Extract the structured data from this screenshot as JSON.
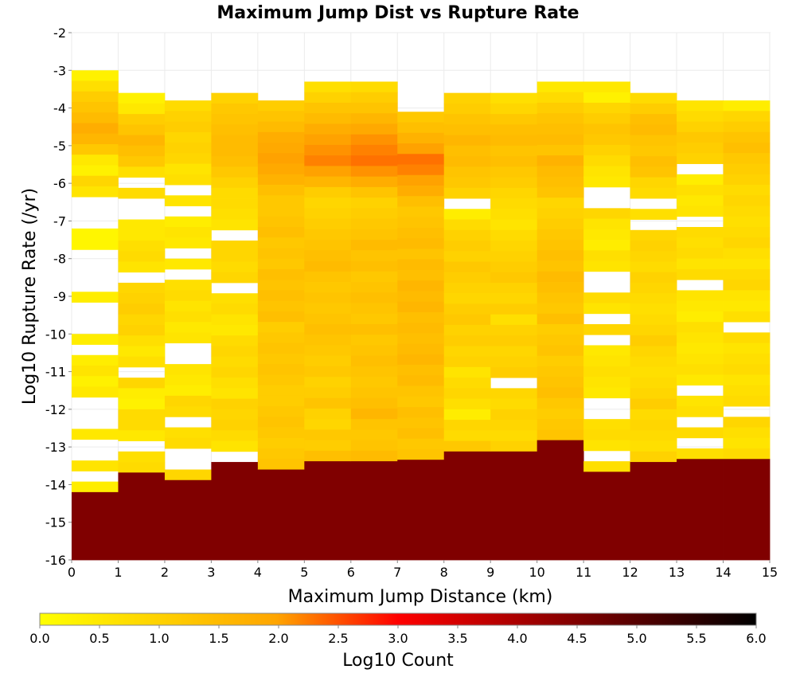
{
  "chart_data": {
    "type": "heatmap",
    "title": "Maximum Jump Dist vs Rupture Rate",
    "xlabel": "Maximum Jump Distance (km)",
    "ylabel": "Log10 Rupture Rate (/yr)",
    "xlim": [
      0,
      15
    ],
    "ylim": [
      -16,
      -2
    ],
    "x_ticks": [
      "0",
      "1",
      "2",
      "3",
      "4",
      "5",
      "6",
      "7",
      "8",
      "9",
      "10",
      "11",
      "12",
      "13",
      "14",
      "15"
    ],
    "y_ticks": [
      "-2",
      "-3",
      "-4",
      "-5",
      "-6",
      "-7",
      "-8",
      "-9",
      "-10",
      "-11",
      "-12",
      "-13",
      "-14",
      "-15",
      "-16"
    ],
    "x_bin_width": 1,
    "y_bin_height": 0.28,
    "grid": true,
    "colorbar": {
      "label": "Log10 Count",
      "min": 0,
      "max": 6,
      "ticks": [
        "0.0",
        "0.5",
        "1.0",
        "1.5",
        "2.0",
        "2.5",
        "3.0",
        "3.5",
        "4.0",
        "4.5",
        "5.0",
        "5.5",
        "6.0"
      ],
      "colors": [
        "#ffff00",
        "#ffa500",
        "#ff0000",
        "#000000"
      ]
    },
    "columns": [
      {
        "x": 0,
        "y_top": -3.0,
        "values": [
          0.3,
          0.7,
          1.1,
          1.3,
          1.5,
          1.8,
          1.6,
          1.2,
          0.5,
          0.3,
          0.9,
          0.6,
          null,
          null,
          null,
          0.2,
          0.2,
          null,
          null,
          null,
          null,
          0.4,
          null,
          null,
          null,
          0.4,
          null,
          0.4,
          0.6,
          0.3,
          0.5,
          null,
          null,
          null,
          0.5,
          null,
          null,
          0.6,
          null,
          0.4,
          4.5
        ]
      },
      {
        "x": 1,
        "y_top": -3.6,
        "values": [
          0.3,
          0.5,
          1.1,
          1.3,
          1.6,
          1.4,
          1.2,
          0.7,
          null,
          0.8,
          null,
          null,
          0.5,
          0.5,
          0.7,
          0.8,
          0.6,
          null,
          0.9,
          1.0,
          1.1,
          0.9,
          1.0,
          0.7,
          0.5,
          0.7,
          null,
          0.9,
          0.4,
          0.3,
          0.8,
          0.8,
          0.5,
          null,
          0.7,
          0.8,
          4.5
        ]
      },
      {
        "x": 2,
        "y_top": -3.8,
        "values": [
          0.8,
          1.0,
          1.1,
          0.9,
          1.0,
          0.9,
          0.6,
          0.7,
          null,
          0.6,
          null,
          0.4,
          0.6,
          0.5,
          null,
          0.5,
          null,
          0.7,
          0.8,
          0.6,
          0.7,
          0.5,
          0.6,
          null,
          null,
          0.6,
          0.5,
          0.4,
          0.9,
          0.8,
          null,
          0.7,
          0.8,
          null,
          null,
          0.9,
          4.5
        ]
      },
      {
        "x": 3,
        "y_top": -3.6,
        "values": [
          1.0,
          1.2,
          1.3,
          1.4,
          1.5,
          1.5,
          1.4,
          1.2,
          1.0,
          0.8,
          0.8,
          0.7,
          0.6,
          null,
          0.9,
          0.9,
          0.8,
          0.9,
          null,
          0.7,
          0.8,
          0.6,
          0.5,
          0.8,
          0.9,
          0.8,
          0.9,
          0.7,
          0.6,
          1.0,
          0.9,
          1.0,
          0.8,
          0.6,
          null,
          4.5
        ]
      },
      {
        "x": 4,
        "y_top": -3.8,
        "values": [
          1.1,
          1.3,
          1.5,
          1.8,
          1.9,
          2.0,
          1.9,
          1.7,
          1.4,
          1.2,
          1.2,
          1.3,
          1.4,
          1.2,
          1.3,
          1.2,
          1.4,
          1.3,
          1.4,
          1.3,
          1.4,
          1.1,
          1.2,
          1.3,
          1.2,
          1.3,
          1.2,
          1.1,
          1.1,
          1.2,
          1.3,
          1.2,
          1.1,
          1.2,
          1.3,
          4.5
        ]
      },
      {
        "x": 5,
        "y_top": -3.3,
        "values": [
          0.7,
          1.0,
          1.3,
          1.5,
          1.8,
          2.0,
          2.1,
          2.2,
          2.0,
          1.6,
          1.1,
          0.9,
          1.0,
          1.1,
          1.2,
          1.3,
          1.4,
          1.5,
          1.3,
          1.2,
          1.3,
          1.2,
          1.3,
          1.4,
          1.3,
          1.2,
          1.1,
          1.2,
          1.0,
          1.1,
          1.3,
          1.0,
          0.9,
          1.2,
          1.1,
          1.4,
          4.5
        ]
      },
      {
        "x": 6,
        "y_top": -3.3,
        "values": [
          0.8,
          1.1,
          1.3,
          1.6,
          1.9,
          2.1,
          2.2,
          2.3,
          2.1,
          1.8,
          1.3,
          1.0,
          1.1,
          1.2,
          1.3,
          1.5,
          1.3,
          1.4,
          1.2,
          1.3,
          1.4,
          1.3,
          1.2,
          1.4,
          1.2,
          1.3,
          1.4,
          1.3,
          1.2,
          1.3,
          1.4,
          1.6,
          1.3,
          1.2,
          1.3,
          1.5,
          4.5
        ]
      },
      {
        "x": 7,
        "y_top": -4.1,
        "values": [
          1.2,
          1.4,
          1.7,
          2.0,
          2.3,
          2.2,
          2.0,
          1.8,
          1.4,
          1.2,
          1.3,
          1.4,
          1.5,
          1.3,
          1.5,
          1.4,
          1.6,
          1.5,
          1.6,
          1.4,
          1.5,
          1.4,
          1.5,
          1.6,
          1.4,
          1.5,
          1.3,
          1.2,
          1.4,
          1.3,
          1.4,
          1.2,
          1.3,
          4.5
        ]
      },
      {
        "x": 8,
        "y_top": -3.6,
        "values": [
          1.0,
          1.1,
          1.3,
          1.4,
          1.6,
          1.4,
          1.5,
          1.3,
          1.2,
          1.0,
          null,
          0.4,
          0.8,
          1.0,
          1.1,
          1.0,
          1.2,
          1.1,
          1.0,
          0.9,
          1.1,
          1.2,
          1.0,
          1.1,
          0.9,
          1.0,
          0.6,
          0.8,
          0.9,
          0.7,
          0.4,
          0.9,
          0.8,
          1.2,
          4.5
        ]
      },
      {
        "x": 9,
        "y_top": -3.6,
        "values": [
          0.7,
          0.9,
          1.2,
          1.4,
          1.5,
          1.3,
          1.4,
          1.2,
          1.1,
          0.9,
          0.8,
          0.7,
          0.6,
          0.8,
          0.9,
          1.0,
          1.1,
          1.2,
          1.0,
          0.9,
          1.1,
          0.7,
          1.0,
          1.1,
          0.9,
          1.0,
          1.1,
          null,
          0.9,
          0.8,
          1.0,
          0.9,
          0.8,
          1.0,
          4.5
        ]
      },
      {
        "x": 10,
        "y_top": -3.3,
        "values": [
          0.5,
          0.8,
          1.1,
          1.3,
          1.4,
          1.5,
          1.3,
          1.7,
          1.5,
          1.4,
          1.3,
          0.9,
          1.0,
          1.1,
          1.2,
          1.3,
          1.4,
          1.3,
          1.5,
          1.4,
          1.3,
          1.2,
          1.4,
          1.1,
          1.2,
          1.3,
          1.1,
          1.2,
          1.3,
          1.4,
          1.2,
          1.1,
          1.2,
          1.3,
          4.5
        ]
      },
      {
        "x": 11,
        "y_top": -3.3,
        "values": [
          0.5,
          0.3,
          0.9,
          1.1,
          1.3,
          1.2,
          1.0,
          0.8,
          0.6,
          0.5,
          null,
          null,
          0.9,
          0.6,
          0.5,
          0.4,
          0.7,
          0.6,
          null,
          null,
          0.8,
          0.6,
          null,
          0.9,
          null,
          0.5,
          0.6,
          0.7,
          0.6,
          0.5,
          null,
          null,
          0.7,
          0.8,
          0.6,
          null,
          0.7,
          4.5
        ]
      },
      {
        "x": 12,
        "y_top": -3.6,
        "values": [
          0.8,
          1.1,
          1.4,
          1.5,
          1.3,
          1.2,
          1.4,
          1.3,
          0.9,
          0.8,
          null,
          0.7,
          null,
          0.9,
          1.0,
          0.9,
          0.8,
          1.0,
          0.9,
          0.8,
          0.7,
          0.8,
          0.9,
          1.1,
          0.9,
          0.8,
          0.7,
          0.8,
          0.9,
          1.1,
          0.8,
          0.9,
          0.8,
          0.7,
          1.0,
          4.5
        ]
      },
      {
        "x": 13,
        "y_top": -3.8,
        "values": [
          0.6,
          0.8,
          1.0,
          1.2,
          1.1,
          1.0,
          null,
          0.4,
          0.7,
          0.5,
          0.6,
          null,
          0.8,
          0.7,
          0.8,
          0.6,
          0.8,
          null,
          0.6,
          0.5,
          0.4,
          0.7,
          0.6,
          0.5,
          0.6,
          0.7,
          0.5,
          null,
          0.6,
          0.7,
          null,
          0.8,
          null,
          0.7,
          4.5
        ]
      },
      {
        "x": 14,
        "y_top": -3.8,
        "values": [
          0.4,
          0.9,
          1.1,
          1.3,
          1.4,
          1.2,
          1.1,
          1.0,
          0.8,
          0.9,
          0.8,
          0.7,
          0.8,
          0.9,
          0.7,
          0.6,
          0.8,
          0.9,
          0.6,
          0.5,
          0.7,
          null,
          0.8,
          0.6,
          0.7,
          0.8,
          0.6,
          0.7,
          0.8,
          null,
          0.9,
          0.7,
          0.6,
          0.8,
          4.5
        ]
      }
    ]
  }
}
